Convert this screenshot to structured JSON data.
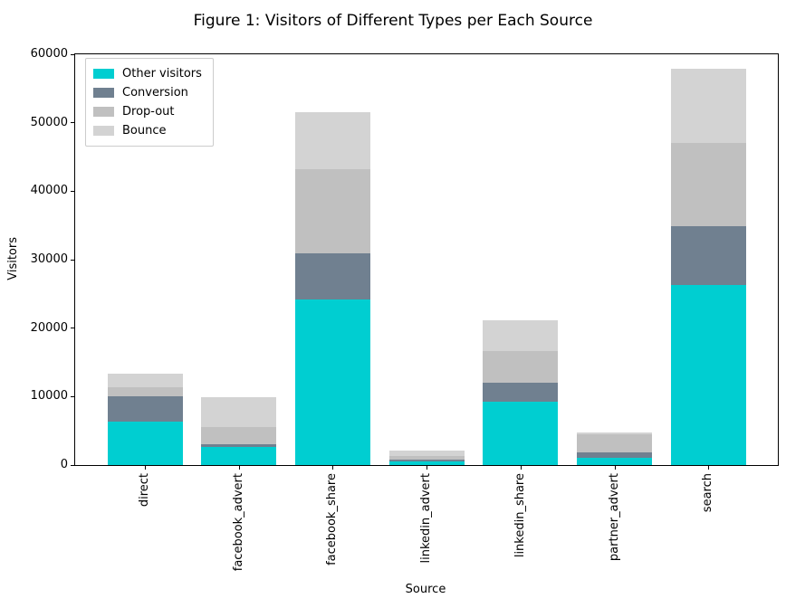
{
  "figure": {
    "title": "Figure 1: Visitors of Different Types per Each Source"
  },
  "chart_data": {
    "type": "bar",
    "stacked": true,
    "title": "Figure 1: Visitors of Different Types per Each Source",
    "xlabel": "Source",
    "ylabel": "Visitors",
    "ylim": [
      0,
      60000
    ],
    "yticks": [
      0,
      10000,
      20000,
      30000,
      40000,
      50000,
      60000
    ],
    "grid": false,
    "legend_position": "upper left",
    "categories": [
      "direct",
      "facebook_advert",
      "facebook_share",
      "linkedin_advert",
      "linkedin_share",
      "partner_advert",
      "search"
    ],
    "series": [
      {
        "name": "Other visitors",
        "color": "#00CED1",
        "values": [
          6400,
          2700,
          24200,
          500,
          9300,
          1100,
          26300
        ]
      },
      {
        "name": "Conversion",
        "color": "#708090",
        "values": [
          3700,
          400,
          6700,
          300,
          2700,
          750,
          8600
        ]
      },
      {
        "name": "Drop-out",
        "color": "#C0C0C0",
        "values": [
          1200,
          2400,
          12300,
          500,
          4700,
          2650,
          12200
        ]
      },
      {
        "name": "Bounce",
        "color": "#D3D3D3",
        "values": [
          2000,
          4400,
          8400,
          800,
          4400,
          200,
          10800
        ]
      }
    ],
    "totals": [
      13300,
      9900,
      51600,
      2100,
      21100,
      4700,
      57900
    ]
  }
}
